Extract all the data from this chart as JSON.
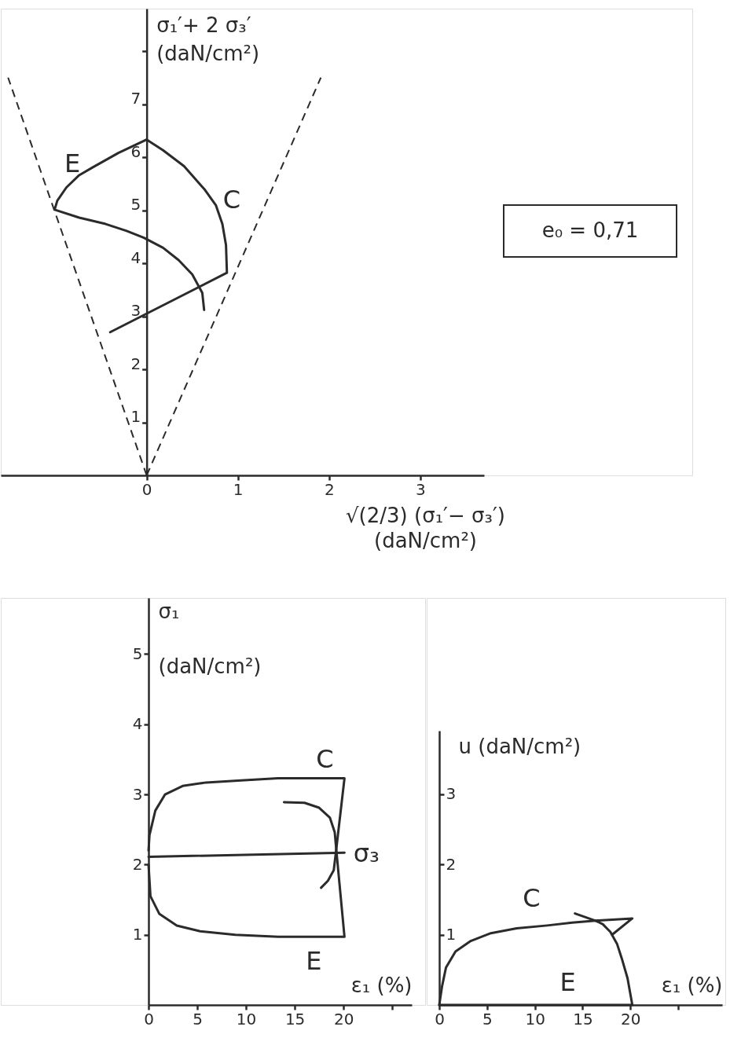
{
  "chart_data": [
    {
      "type": "line",
      "xlabel": "√(2/3) (σ₁′− σ₃′)\n(daN/cm²)",
      "ylabel": "σ₁′+ 2 σ₃′\n(daN/cm²)",
      "xlim": [
        -1.6,
        3.7
      ],
      "ylim": [
        0,
        8.8
      ],
      "xticks": [
        0,
        1,
        2,
        3
      ],
      "yticks": [
        1,
        2,
        3,
        4,
        5,
        6,
        7,
        {
          "value": 8,
          "label": null
        }
      ],
      "series": [
        {
          "name": "E",
          "color": "#2b2b2b",
          "x": [
            0,
            -0.31,
            -0.59,
            -0.74,
            -0.88,
            -0.98,
            -1.01,
            -0.74,
            -0.45,
            -0.22,
            -0.03,
            0.18,
            0.35,
            0.5,
            0.61,
            0.63
          ],
          "values": [
            6.33,
            6.08,
            5.81,
            5.66,
            5.43,
            5.18,
            5.01,
            4.86,
            4.74,
            4.61,
            4.48,
            4.29,
            4.06,
            3.79,
            3.44,
            3.12
          ]
        },
        {
          "name": "C",
          "color": "#2b2b2b",
          "x": [
            0,
            0.18,
            0.41,
            0.64,
            0.76,
            0.83,
            0.87,
            0.88,
            -0.4
          ],
          "values": [
            6.33,
            6.13,
            5.83,
            5.38,
            5.09,
            4.74,
            4.34,
            3.82,
            2.7
          ]
        },
        {
          "color": "#2b2b2b",
          "line_style": "dashed",
          "x": [
            0,
            -1.52
          ],
          "values": [
            0,
            7.5
          ]
        },
        {
          "color": "#2b2b2b",
          "line_style": "dashed",
          "x": [
            0,
            1.91
          ],
          "values": [
            0,
            7.5
          ]
        }
      ],
      "annotations": [
        "e₀ = 0,71"
      ]
    },
    {
      "type": "line",
      "xlabel": "ε₁ (%)",
      "ylabel": "σ₁\n(daN/cm²)",
      "xlim": [
        0,
        27
      ],
      "ylim": [
        0,
        5.8
      ],
      "xticks": [
        0,
        5,
        10,
        15,
        20,
        {
          "value": 25,
          "label": null
        }
      ],
      "yticks": [
        1,
        2,
        3,
        4,
        5
      ],
      "series": [
        {
          "name": "C",
          "color": "#2b2b2b",
          "x": [
            0,
            0.1,
            0.7,
            1.7,
            3.5,
            5.9,
            9.5,
            13.3,
            20.1,
            19.2,
            19.0,
            18.4,
            17.7
          ],
          "values": [
            2.2,
            2.42,
            2.77,
            3.0,
            3.12,
            3.17,
            3.2,
            3.23,
            3.23,
            2.15,
            1.92,
            1.77,
            1.67
          ]
        },
        {
          "name": "E",
          "color": "#2b2b2b",
          "x": [
            0,
            0.2,
            1.1,
            2.9,
            5.3,
            8.9,
            13.3,
            20.1,
            19.3,
            19.1,
            18.6,
            17.5,
            16.0,
            13.9
          ],
          "values": [
            2.0,
            1.55,
            1.3,
            1.13,
            1.05,
            1.0,
            0.97,
            0.97,
            2.15,
            2.46,
            2.67,
            2.81,
            2.88,
            2.89
          ]
        },
        {
          "name": "σ₃",
          "color": "#2b2b2b",
          "x": [
            0,
            20.1
          ],
          "values": [
            2.11,
            2.17
          ]
        }
      ]
    },
    {
      "type": "line",
      "xlabel": "ε₁ (%)",
      "ylabel": "u (daN/cm²)",
      "xlim": [
        0,
        29.6
      ],
      "ylim": [
        0,
        3.9
      ],
      "xticks": [
        0,
        5,
        10,
        15,
        20,
        {
          "value": 25,
          "label": null
        }
      ],
      "yticks": [
        1,
        2,
        3
      ],
      "series": [
        {
          "name": "C",
          "color": "#2b2b2b",
          "x": [
            0,
            0.3,
            0.7,
            1.7,
            3.3,
            5.4,
            8.1,
            11.3,
            13.9,
            16.6,
            20.2,
            18.1
          ],
          "values": [
            0,
            0.27,
            0.53,
            0.76,
            0.91,
            1.02,
            1.09,
            1.13,
            1.17,
            1.2,
            1.23,
            1.0
          ]
        },
        {
          "name": "E",
          "color": "#2b2b2b",
          "x": [
            0,
            20.2,
            19.7,
            19.1,
            18.6,
            17.9,
            17.1,
            16.3,
            14.2
          ],
          "values": [
            0,
            0,
            0.38,
            0.66,
            0.87,
            1.04,
            1.15,
            1.2,
            1.3
          ]
        }
      ]
    }
  ]
}
